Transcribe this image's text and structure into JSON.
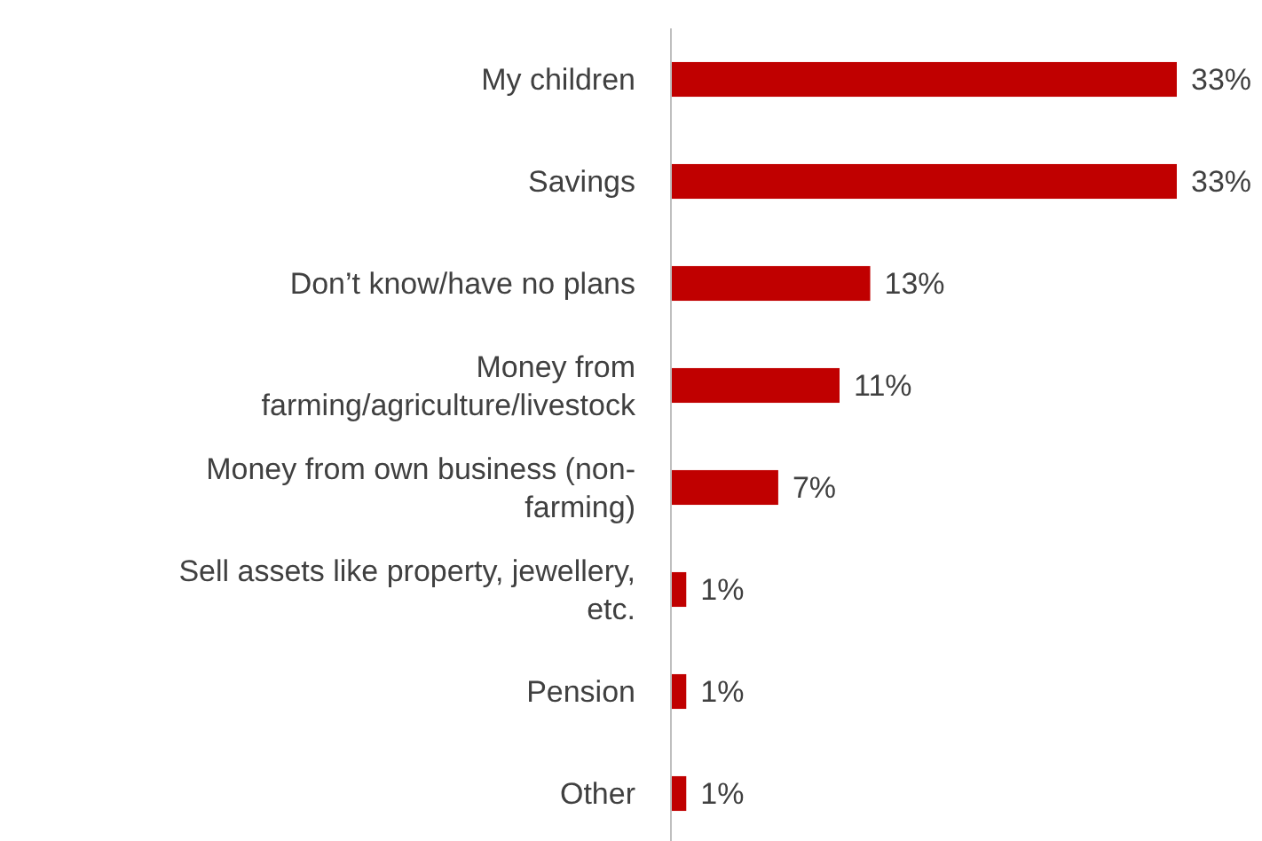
{
  "chart_data": {
    "type": "bar",
    "orientation": "horizontal",
    "categories": [
      "My children",
      "Savings",
      "Don’t know/have no plans",
      "Money from farming/agriculture/livestock",
      "Money from own business (non-farming)",
      "Sell assets like property, jewellery, etc.",
      "Pension",
      "Other"
    ],
    "values": [
      33,
      33,
      13,
      11,
      7,
      1,
      1,
      1
    ],
    "color": "#c00000",
    "value_labels": [
      "33%",
      "33%",
      "13%",
      "11%",
      "7%",
      "1%",
      "1%",
      "1%"
    ]
  }
}
